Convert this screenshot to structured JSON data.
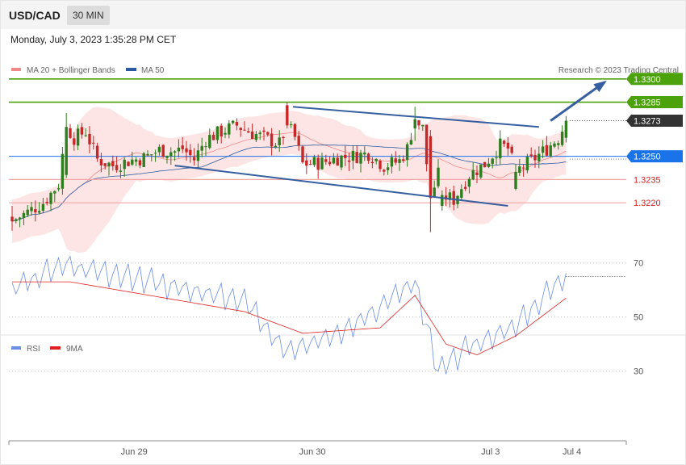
{
  "header": {
    "symbol": "USD/CAD",
    "timeframe": "30 MIN",
    "datetime": "Monday, July 3, 2023 1:35:28 PM CET"
  },
  "colors": {
    "bullish": "#2e7d1e",
    "bearish": "#c62828",
    "bollinger_fill": "#fde0e0",
    "bollinger_mid": "#f08a8a",
    "ma50": "#2c5aa0",
    "resistance": "#4ca20a",
    "current": "#333333",
    "pivot": "#1a73e8",
    "support": "#f4a6a6",
    "rsi": "#6b8de3",
    "rsi_ma": "#e02020",
    "trendline": "#355f9f"
  },
  "chart_data": [
    {
      "type": "candlestick",
      "legend": [
        {
          "label": "MA 20 + Bollinger Bands",
          "color": "#f08a8a"
        },
        {
          "label": "MA 50",
          "color": "#2c5aa0"
        }
      ],
      "watermark": "Research © 2023 Trading Central",
      "x_ticks": [
        "Jun 29",
        "Jun 30",
        "Jul 3",
        "Jul 4"
      ],
      "ylim": [
        1.3145,
        1.3315
      ],
      "levels": [
        {
          "label": "1.3300",
          "value": 1.33,
          "kind": "resistance"
        },
        {
          "label": "1.3285",
          "value": 1.3285,
          "kind": "resistance"
        },
        {
          "label": "1.3273",
          "value": 1.3273,
          "kind": "current"
        },
        {
          "label": "1.3250",
          "value": 1.325,
          "kind": "pivot"
        },
        {
          "label": "1.3235",
          "value": 1.3235,
          "kind": "support"
        },
        {
          "label": "1.3220",
          "value": 1.322,
          "kind": "support"
        }
      ],
      "trend_channel": [
        {
          "from": [
            72.5,
            1.3282
          ],
          "to": [
            136,
            1.3269
          ]
        },
        {
          "from": [
            42,
            1.3244
          ],
          "to": [
            128,
            1.3218
          ]
        }
      ],
      "projection_arrow": {
        "from": [
          139,
          1.3273
        ],
        "to": [
          153,
          1.3298
        ]
      },
      "key_candles": [
        {
          "bar": 0,
          "open": 1.3211,
          "high": 1.3218,
          "low": 1.3202,
          "close": 1.3208
        },
        {
          "bar": 14,
          "open": 1.3238,
          "high": 1.3278,
          "low": 1.3236,
          "close": 1.3269
        },
        {
          "bar": 71,
          "open": 1.3283,
          "high": 1.3285,
          "low": 1.3268,
          "close": 1.327
        },
        {
          "bar": 104,
          "open": 1.3268,
          "high": 1.3282,
          "low": 1.326,
          "close": 1.3274
        },
        {
          "bar": 108,
          "open": 1.3263,
          "high": 1.3267,
          "low": 1.3201,
          "close": 1.3223
        },
        {
          "bar": 111,
          "open": 1.3218,
          "high": 1.3228,
          "low": 1.3215,
          "close": 1.3225
        },
        {
          "bar": 130,
          "open": 1.3229,
          "high": 1.3245,
          "low": 1.3228,
          "close": 1.324
        },
        {
          "bar": 143,
          "open": 1.3262,
          "high": 1.3276,
          "low": 1.3259,
          "close": 1.3273
        }
      ]
    },
    {
      "type": "line",
      "legend": [
        {
          "label": "RSI",
          "color": "#6b8de3"
        },
        {
          "label": "9MA",
          "color": "#e02020"
        }
      ],
      "ylim": [
        20,
        80
      ],
      "y_ticks": [
        70,
        50,
        30
      ],
      "last_rsi": 65,
      "key_points": {
        "rsi": [
          [
            0,
            60
          ],
          [
            14,
            68
          ],
          [
            60,
            55
          ],
          [
            71,
            36
          ],
          [
            88,
            46
          ],
          [
            104,
            62
          ],
          [
            110,
            29
          ],
          [
            118,
            38
          ],
          [
            130,
            46
          ],
          [
            143,
            65
          ]
        ],
        "ma": [
          [
            0,
            63
          ],
          [
            15,
            63
          ],
          [
            60,
            52
          ],
          [
            75,
            44
          ],
          [
            95,
            46
          ],
          [
            104,
            58
          ],
          [
            112,
            40
          ],
          [
            120,
            36
          ],
          [
            130,
            43
          ],
          [
            143,
            57
          ]
        ]
      }
    }
  ]
}
